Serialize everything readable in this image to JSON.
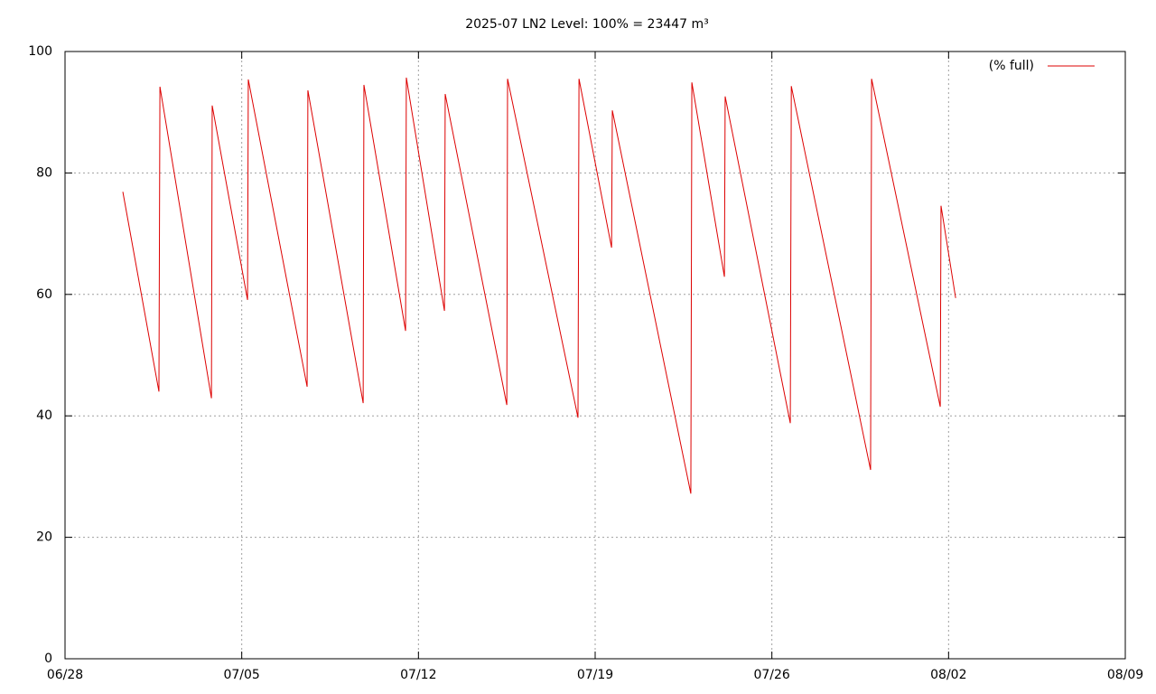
{
  "chart_data": {
    "type": "line",
    "title": "2025-07 LN2 Level: 100% = 23447 m³",
    "x": [
      2.29,
      3.72,
      3.76,
      5.8,
      5.83,
      7.23,
      7.26,
      9.59,
      9.62,
      11.81,
      11.84,
      13.49,
      13.52,
      15.03,
      15.06,
      17.5,
      17.53,
      20.32,
      20.36,
      21.65,
      21.68,
      24.79,
      24.83,
      26.12,
      26.15,
      28.73,
      28.77,
      31.91,
      31.95,
      34.67,
      34.7,
      35.28
    ],
    "series": [
      {
        "name": "(% full)",
        "color": "#dd0000",
        "values": [
          76.9,
          44.0,
          94.2,
          42.9,
          91.1,
          59.1,
          95.4,
          44.8,
          93.6,
          42.1,
          94.5,
          54.0,
          95.7,
          57.3,
          93.0,
          41.8,
          95.5,
          39.7,
          95.5,
          67.7,
          90.3,
          27.2,
          94.9,
          62.9,
          92.6,
          38.8,
          94.3,
          31.1,
          95.5,
          41.5,
          74.6,
          59.4
        ]
      }
    ],
    "xlim": [
      0,
      42
    ],
    "xticks": [
      {
        "value": 0,
        "label": "06/28"
      },
      {
        "value": 7,
        "label": "07/05"
      },
      {
        "value": 14,
        "label": "07/12"
      },
      {
        "value": 21,
        "label": "07/19"
      },
      {
        "value": 28,
        "label": "07/26"
      },
      {
        "value": 35,
        "label": "08/02"
      },
      {
        "value": 42,
        "label": "08/09"
      }
    ],
    "ylim": [
      0,
      100
    ],
    "yticks": [
      0,
      20,
      40,
      60,
      80,
      100
    ],
    "grid": true,
    "legend": "top-right"
  }
}
